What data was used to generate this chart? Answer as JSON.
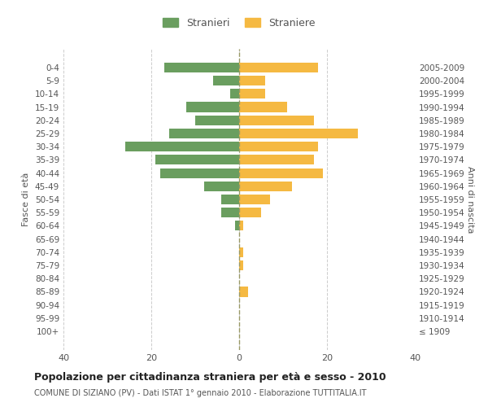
{
  "age_groups": [
    "100+",
    "95-99",
    "90-94",
    "85-89",
    "80-84",
    "75-79",
    "70-74",
    "65-69",
    "60-64",
    "55-59",
    "50-54",
    "45-49",
    "40-44",
    "35-39",
    "30-34",
    "25-29",
    "20-24",
    "15-19",
    "10-14",
    "5-9",
    "0-4"
  ],
  "birth_years": [
    "≤ 1909",
    "1910-1914",
    "1915-1919",
    "1920-1924",
    "1925-1929",
    "1930-1934",
    "1935-1939",
    "1940-1944",
    "1945-1949",
    "1950-1954",
    "1955-1959",
    "1960-1964",
    "1965-1969",
    "1970-1974",
    "1975-1979",
    "1980-1984",
    "1985-1989",
    "1990-1994",
    "1995-1999",
    "2000-2004",
    "2005-2009"
  ],
  "males": [
    0,
    0,
    0,
    0,
    0,
    0,
    0,
    0,
    1,
    4,
    4,
    8,
    18,
    19,
    26,
    16,
    10,
    12,
    2,
    6,
    17
  ],
  "females": [
    0,
    0,
    0,
    2,
    0,
    1,
    1,
    0,
    1,
    5,
    7,
    12,
    19,
    17,
    18,
    27,
    17,
    11,
    6,
    6,
    18
  ],
  "male_color": "#6a9e5f",
  "female_color": "#f5b942",
  "male_label": "Stranieri",
  "female_label": "Straniere",
  "title": "Popolazione per cittadinanza straniera per età e sesso - 2010",
  "subtitle": "COMUNE DI SIZIANO (PV) - Dati ISTAT 1° gennaio 2010 - Elaborazione TUTTITALIA.IT",
  "ylabel_left": "Fasce di età",
  "ylabel_right": "Anni di nascita",
  "xlim": 40,
  "background_color": "#ffffff",
  "grid_color": "#cccccc",
  "text_color": "#555555"
}
